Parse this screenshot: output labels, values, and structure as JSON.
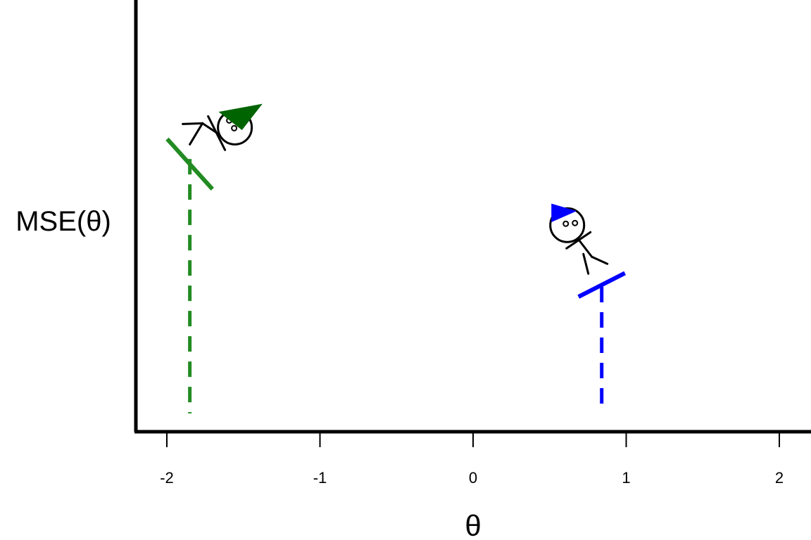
{
  "chart_data": {
    "type": "scatter",
    "title": "",
    "xlabel": "θ",
    "ylabel": "MSE(θ)",
    "xlim": [
      -2.2,
      2.2
    ],
    "x_ticks": [
      -2,
      -1,
      0,
      1,
      2
    ],
    "x_tick_labels": [
      "-2",
      "-1",
      "0",
      "1",
      "2"
    ],
    "y_ticks_shown": false,
    "grid": false,
    "legend": "none",
    "series": [
      {
        "color": "#228b22",
        "hat_color": "#006400",
        "x": -1.85,
        "y": 0.62,
        "slope": "negative",
        "marker": "stick-figure-skier"
      },
      {
        "color": "#0000ff",
        "hat_color": "#0000ff",
        "x": 0.84,
        "y": 0.34,
        "slope": "positive",
        "marker": "stick-figure-skier"
      }
    ]
  }
}
